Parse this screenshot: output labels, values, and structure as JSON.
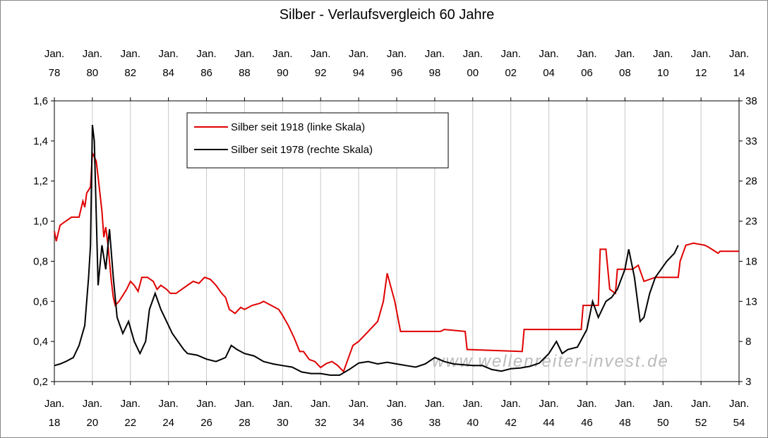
{
  "chart_data": {
    "type": "line",
    "title": "Silber - Verlaufsvergleich 60 Jahre",
    "watermark": "www.wellenreiter-invest.de",
    "xlim": [
      1918,
      1954
    ],
    "xticks": [
      {
        "value": 1918,
        "label": "Jan. 18"
      },
      {
        "value": 1920,
        "label": "Jan. 20"
      },
      {
        "value": 1922,
        "label": "Jan. 22"
      },
      {
        "value": 1924,
        "label": "Jan. 24"
      },
      {
        "value": 1926,
        "label": "Jan. 26"
      },
      {
        "value": 1928,
        "label": "Jan. 28"
      },
      {
        "value": 1930,
        "label": "Jan. 30"
      },
      {
        "value": 1932,
        "label": "Jan. 32"
      },
      {
        "value": 1934,
        "label": "Jan. 34"
      },
      {
        "value": 1936,
        "label": "Jan. 36"
      },
      {
        "value": 1938,
        "label": "Jan. 38"
      },
      {
        "value": 1940,
        "label": "Jan. 40"
      },
      {
        "value": 1942,
        "label": "Jan. 42"
      },
      {
        "value": 1944,
        "label": "Jan. 44"
      },
      {
        "value": 1946,
        "label": "Jan. 46"
      },
      {
        "value": 1948,
        "label": "Jan. 48"
      },
      {
        "value": 1950,
        "label": "Jan. 50"
      },
      {
        "value": 1952,
        "label": "Jan. 52"
      },
      {
        "value": 1954,
        "label": "Jan. 54"
      }
    ],
    "x2lim": [
      1978,
      2014
    ],
    "x2ticks": [
      {
        "value": 1978,
        "label": "Jan. 78"
      },
      {
        "value": 1980,
        "label": "Jan. 80"
      },
      {
        "value": 1982,
        "label": "Jan. 82"
      },
      {
        "value": 1984,
        "label": "Jan. 84"
      },
      {
        "value": 1986,
        "label": "Jan. 86"
      },
      {
        "value": 1988,
        "label": "Jan. 88"
      },
      {
        "value": 1990,
        "label": "Jan. 90"
      },
      {
        "value": 1992,
        "label": "Jan. 92"
      },
      {
        "value": 1994,
        "label": "Jan. 94"
      },
      {
        "value": 1996,
        "label": "Jan. 96"
      },
      {
        "value": 1998,
        "label": "Jan. 98"
      },
      {
        "value": 2000,
        "label": "Jan. 00"
      },
      {
        "value": 2002,
        "label": "Jan. 02"
      },
      {
        "value": 2004,
        "label": "Jan. 04"
      },
      {
        "value": 2006,
        "label": "Jan. 06"
      },
      {
        "value": 2008,
        "label": "Jan. 08"
      },
      {
        "value": 2010,
        "label": "Jan. 10"
      },
      {
        "value": 2012,
        "label": "Jan. 12"
      },
      {
        "value": 2014,
        "label": "Jan. 14"
      }
    ],
    "ylim": [
      0.2,
      1.6
    ],
    "yticks": [
      {
        "value": 0.2,
        "label": "0,2"
      },
      {
        "value": 0.4,
        "label": "0,4"
      },
      {
        "value": 0.6,
        "label": "0,6"
      },
      {
        "value": 0.8,
        "label": "0,8"
      },
      {
        "value": 1.0,
        "label": "1,0"
      },
      {
        "value": 1.2,
        "label": "1,2"
      },
      {
        "value": 1.4,
        "label": "1,4"
      },
      {
        "value": 1.6,
        "label": "1,6"
      }
    ],
    "y2lim": [
      3,
      38
    ],
    "y2ticks": [
      3,
      8,
      13,
      18,
      23,
      28,
      33,
      38
    ],
    "grid": true,
    "legend": "upper left",
    "series": [
      {
        "name": "Silber seit 1918 (linke Skala)",
        "color": "#e00000",
        "axis": "y",
        "x": [
          1918.0,
          1918.1,
          1918.3,
          1918.6,
          1918.9,
          1919.3,
          1919.5,
          1919.6,
          1919.7,
          1919.9,
          1920.0,
          1920.2,
          1920.3,
          1920.5,
          1920.6,
          1920.7,
          1920.8,
          1921.0,
          1921.1,
          1921.2,
          1921.4,
          1921.6,
          1921.8,
          1922.0,
          1922.2,
          1922.4,
          1922.6,
          1922.9,
          1923.2,
          1923.4,
          1923.6,
          1923.9,
          1924.1,
          1924.4,
          1924.7,
          1925.0,
          1925.3,
          1925.6,
          1925.9,
          1926.2,
          1926.5,
          1926.8,
          1927.0,
          1927.2,
          1927.5,
          1927.8,
          1928.0,
          1928.4,
          1928.8,
          1929.0,
          1929.4,
          1929.8,
          1930.0,
          1930.3,
          1930.6,
          1930.9,
          1931.1,
          1931.4,
          1931.7,
          1932.0,
          1932.3,
          1932.6,
          1932.9,
          1933.2,
          1933.7,
          1934.0,
          1934.4,
          1935.0,
          1935.3,
          1935.5,
          1935.9,
          1936.2,
          1938.3,
          1938.5,
          1939.6,
          1939.7,
          1942.6,
          1942.7,
          1945.7,
          1945.8,
          1946.6,
          1946.7,
          1947.0,
          1947.2,
          1947.5,
          1947.6,
          1948.4,
          1948.7,
          1949.0,
          1949.6,
          1950.8,
          1950.9,
          1951.2,
          1951.6,
          1952.2,
          1952.4,
          1952.9,
          1953.0,
          1954.0
        ],
        "values": [
          0.95,
          0.9,
          0.98,
          1.0,
          1.02,
          1.02,
          1.1,
          1.07,
          1.14,
          1.17,
          1.34,
          1.3,
          1.22,
          1.05,
          0.92,
          0.97,
          0.9,
          0.7,
          0.62,
          0.58,
          0.6,
          0.63,
          0.66,
          0.7,
          0.68,
          0.65,
          0.72,
          0.72,
          0.7,
          0.66,
          0.68,
          0.66,
          0.64,
          0.64,
          0.66,
          0.68,
          0.7,
          0.69,
          0.72,
          0.71,
          0.68,
          0.64,
          0.62,
          0.56,
          0.54,
          0.57,
          0.56,
          0.58,
          0.59,
          0.6,
          0.58,
          0.56,
          0.53,
          0.48,
          0.42,
          0.35,
          0.35,
          0.31,
          0.3,
          0.27,
          0.29,
          0.3,
          0.28,
          0.25,
          0.38,
          0.4,
          0.44,
          0.5,
          0.6,
          0.74,
          0.6,
          0.45,
          0.45,
          0.46,
          0.45,
          0.36,
          0.35,
          0.46,
          0.46,
          0.58,
          0.58,
          0.86,
          0.86,
          0.66,
          0.64,
          0.76,
          0.76,
          0.78,
          0.7,
          0.72,
          0.72,
          0.8,
          0.88,
          0.89,
          0.88,
          0.87,
          0.84,
          0.85,
          0.85
        ]
      },
      {
        "name": "Silber seit 1978 (rechte Skala)",
        "color": "#000000",
        "axis": "y2",
        "x": [
          1978.0,
          1978.3,
          1978.6,
          1979.0,
          1979.3,
          1979.6,
          1979.8,
          1979.9,
          1980.0,
          1980.1,
          1980.3,
          1980.5,
          1980.7,
          1980.9,
          1981.1,
          1981.3,
          1981.6,
          1981.9,
          1982.2,
          1982.5,
          1982.8,
          1983.0,
          1983.3,
          1983.6,
          1983.9,
          1984.2,
          1984.5,
          1984.8,
          1985.0,
          1985.5,
          1986.0,
          1986.5,
          1987.0,
          1987.3,
          1987.6,
          1988.0,
          1988.5,
          1989.0,
          1989.5,
          1990.0,
          1990.5,
          1991.0,
          1991.5,
          1992.0,
          1992.5,
          1993.0,
          1993.5,
          1994.0,
          1994.5,
          1995.0,
          1995.5,
          1996.0,
          1996.5,
          1997.0,
          1997.5,
          1998.0,
          1998.5,
          1999.0,
          1999.5,
          2000.0,
          2000.5,
          2001.0,
          2001.5,
          2002.0,
          2002.5,
          2003.0,
          2003.5,
          2004.0,
          2004.4,
          2004.7,
          2005.0,
          2005.5,
          2006.0,
          2006.3,
          2006.6,
          2007.0,
          2007.3,
          2007.6,
          2008.0,
          2008.2,
          2008.5,
          2008.8,
          2009.0,
          2009.3,
          2009.6,
          2009.9,
          2010.2,
          2010.4,
          2010.6,
          2010.8
        ],
        "values": [
          5.0,
          5.2,
          5.5,
          6.0,
          7.5,
          10,
          16,
          20,
          35,
          33,
          15,
          20,
          17,
          22,
          16,
          11,
          9,
          10.5,
          8,
          6.5,
          8,
          12,
          14,
          12,
          10.5,
          9,
          8,
          7,
          6.5,
          6.3,
          5.8,
          5.5,
          6.0,
          7.5,
          7.0,
          6.5,
          6.2,
          5.5,
          5.2,
          5.0,
          4.8,
          4.2,
          4.0,
          4.0,
          3.8,
          3.8,
          4.5,
          5.3,
          5.5,
          5.2,
          5.4,
          5.2,
          5.0,
          4.8,
          5.2,
          6.0,
          5.5,
          5.2,
          5.1,
          5.0,
          5.0,
          4.5,
          4.3,
          4.6,
          4.7,
          4.9,
          5.3,
          6.5,
          8.0,
          6.5,
          7.0,
          7.3,
          9.5,
          13,
          11,
          13,
          13.5,
          14.5,
          17,
          19.5,
          16,
          10.5,
          11,
          14,
          16,
          17,
          18,
          18.5,
          19,
          20
        ]
      }
    ]
  }
}
